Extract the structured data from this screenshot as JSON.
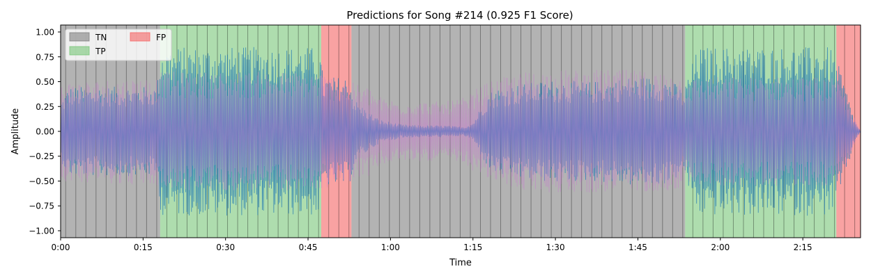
{
  "chart_data": {
    "type": "area",
    "title": "Predictions for Song #214 (0.925 F1 Score)",
    "xlabel": "Time",
    "ylabel": "Amplitude",
    "xlim": [
      0,
      145.5
    ],
    "ylim": [
      -1.07,
      1.07
    ],
    "grid": false,
    "legend_position": "top-left",
    "x_ticks": [
      {
        "value": 0,
        "label": "0:00"
      },
      {
        "value": 15,
        "label": "0:15"
      },
      {
        "value": 30,
        "label": "0:30"
      },
      {
        "value": 45,
        "label": "0:45"
      },
      {
        "value": 60,
        "label": "1:00"
      },
      {
        "value": 75,
        "label": "1:15"
      },
      {
        "value": 90,
        "label": "1:30"
      },
      {
        "value": 105,
        "label": "1:45"
      },
      {
        "value": 120,
        "label": "2:00"
      },
      {
        "value": 135,
        "label": "2:15"
      }
    ],
    "y_ticks": [
      -1.0,
      -0.75,
      -0.5,
      -0.25,
      0.0,
      0.25,
      0.5,
      0.75,
      1.0
    ],
    "y_tick_labels": [
      "−1.00",
      "−0.75",
      "−0.50",
      "−0.25",
      "0.00",
      "0.25",
      "0.50",
      "0.75",
      "1.00"
    ],
    "legend": [
      {
        "label": "TN",
        "color": "#808080"
      },
      {
        "label": "TP",
        "color": "#78c678"
      },
      {
        "label": "FP",
        "color": "#f56464"
      }
    ],
    "regions": [
      {
        "label": "TN",
        "start": 0.0,
        "end": 18.1
      },
      {
        "label": "TP",
        "start": 18.1,
        "end": 47.4
      },
      {
        "label": "FP",
        "start": 47.4,
        "end": 52.9
      },
      {
        "label": "TN",
        "start": 52.9,
        "end": 113.6
      },
      {
        "label": "TP",
        "start": 113.6,
        "end": 141.1
      },
      {
        "label": "FP",
        "start": 141.1,
        "end": 145.5
      }
    ],
    "frame_boundaries_interval_s": 1.84,
    "series": [
      {
        "color": "#1f77b4",
        "envelope": {
          "t": [
            0,
            1.5,
            17.5,
            18.3,
            47,
            47.8,
            52.5,
            53.5,
            56,
            58,
            62,
            66,
            70,
            72,
            73.5,
            75,
            76,
            77,
            78,
            80,
            84,
            90,
            96,
            100,
            104,
            108,
            111,
            112.5,
            113.4,
            114,
            116,
            126,
            136,
            140,
            142,
            143.5,
            144.5,
            145.5
          ],
          "amp": [
            0.3,
            0.45,
            0.45,
            0.85,
            0.85,
            0.55,
            0.55,
            0.32,
            0.2,
            0.12,
            0.07,
            0.06,
            0.06,
            0.05,
            0.05,
            0.09,
            0.2,
            0.3,
            0.4,
            0.45,
            0.48,
            0.52,
            0.5,
            0.52,
            0.55,
            0.55,
            0.52,
            0.45,
            0.4,
            0.55,
            0.85,
            0.85,
            0.85,
            0.85,
            0.6,
            0.3,
            0.1,
            0.0
          ]
        }
      },
      {
        "color": "#ca78d2",
        "envelope": {
          "t": [
            0,
            17.5,
            18.3,
            47,
            52.5,
            56,
            58,
            62,
            66,
            70,
            74,
            76,
            78,
            84,
            90,
            96,
            100,
            104,
            108,
            112,
            113.5,
            116,
            126,
            136,
            140,
            142,
            144,
            145.5
          ],
          "amp": [
            0.5,
            0.55,
            0.6,
            0.6,
            0.5,
            0.45,
            0.35,
            0.3,
            0.3,
            0.3,
            0.35,
            0.45,
            0.5,
            0.6,
            0.62,
            0.62,
            0.62,
            0.62,
            0.6,
            0.6,
            0.5,
            0.55,
            0.55,
            0.55,
            0.55,
            0.45,
            0.2,
            0.0
          ]
        }
      }
    ]
  }
}
